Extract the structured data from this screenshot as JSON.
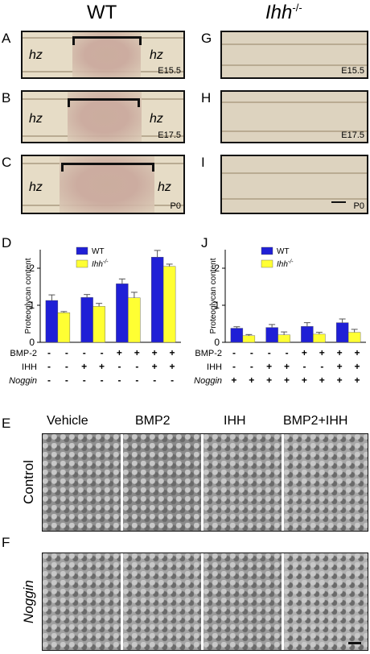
{
  "headers": {
    "left": "WT",
    "right_prefix": "Ihh",
    "right_sup": "-/-"
  },
  "panel_letters": {
    "a": "A",
    "b": "B",
    "c": "C",
    "g": "G",
    "h": "H",
    "i": "I",
    "d": "D",
    "j": "J",
    "e": "E",
    "f": "F"
  },
  "micrographs": {
    "zone": "hz",
    "stages": [
      "E15.5",
      "E17.5",
      "P0"
    ]
  },
  "sem": {
    "columns": [
      "Vehicle",
      "BMP2",
      "IHH",
      "BMP2+IHH"
    ],
    "rows": [
      "Control",
      "Noggin"
    ]
  },
  "chart_data": [
    {
      "type": "bar",
      "panel": "D",
      "ylabel": "Proteoglycan content",
      "ylim": [
        0,
        2.5
      ],
      "yticks": [
        0,
        1,
        2
      ],
      "series": [
        {
          "name": "WT",
          "color": "#1f1fd6",
          "values": [
            1.13,
            1.21,
            1.58,
            2.3
          ],
          "errors": [
            0.15,
            0.08,
            0.13,
            0.18
          ]
        },
        {
          "name_prefix": "Ihh",
          "name_sup": "-/-",
          "color": "#ffff33",
          "values": [
            0.8,
            0.97,
            1.2,
            2.05
          ],
          "errors": [
            0.03,
            0.08,
            0.15,
            0.06
          ]
        }
      ],
      "treatments": [
        {
          "name": "BMP-2",
          "signs": [
            "-",
            "-",
            "-",
            "-",
            "+",
            "+",
            "+",
            "+"
          ]
        },
        {
          "name": "IHH",
          "signs": [
            "-",
            "-",
            "+",
            "+",
            "-",
            "-",
            "+",
            "+"
          ]
        },
        {
          "name": "Noggin",
          "signs": [
            "-",
            "-",
            "-",
            "-",
            "-",
            "-",
            "-",
            "-"
          ]
        }
      ]
    },
    {
      "type": "bar",
      "panel": "J",
      "ylabel": "Proteoglycan content",
      "ylim": [
        0,
        2.5
      ],
      "yticks": [
        0,
        1,
        2
      ],
      "series": [
        {
          "name": "WT",
          "color": "#1f1fd6",
          "values": [
            0.38,
            0.4,
            0.43,
            0.53
          ],
          "errors": [
            0.04,
            0.08,
            0.1,
            0.1
          ]
        },
        {
          "name_prefix": "Ihh",
          "name_sup": "-/-",
          "color": "#ffff33",
          "values": [
            0.18,
            0.2,
            0.22,
            0.27
          ],
          "errors": [
            0.03,
            0.08,
            0.05,
            0.08
          ]
        }
      ],
      "treatments": [
        {
          "name": "BMP-2",
          "signs": [
            "-",
            "-",
            "-",
            "-",
            "+",
            "+",
            "+",
            "+"
          ]
        },
        {
          "name": "IHH",
          "signs": [
            "-",
            "-",
            "+",
            "+",
            "-",
            "-",
            "+",
            "+"
          ]
        },
        {
          "name": "Noggin",
          "signs": [
            "+",
            "+",
            "+",
            "+",
            "+",
            "+",
            "+",
            "+"
          ]
        }
      ]
    }
  ]
}
